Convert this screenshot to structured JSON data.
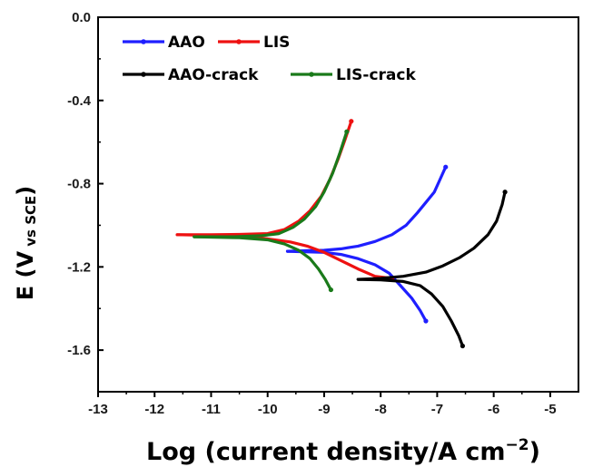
{
  "chart_data": {
    "type": "line",
    "title": "",
    "xlabel": "Log (current density/A cm",
    "xlabel_sup": "−2",
    "xlabel_close": ")",
    "ylabel_main": "E (V",
    "ylabel_sub": " vs SCE",
    "ylabel_close": ")",
    "xlim": [
      -13,
      -4.5
    ],
    "ylim": [
      -1.8,
      0.0
    ],
    "xticks": [
      -13,
      -12,
      -11,
      -10,
      -9,
      -8,
      -7,
      -6,
      -5
    ],
    "xtick_labels": [
      "-13",
      "-12",
      "-11",
      "-10",
      "-9",
      "-8",
      "-7",
      "-6",
      "-5"
    ],
    "yticks": [
      0.0,
      -0.4,
      -0.8,
      -1.2,
      -1.6
    ],
    "ytick_labels": [
      "0.0",
      "-0.4",
      "-0.8",
      "-1.2",
      "-1.6"
    ],
    "grid": false,
    "legend_position": "top-left",
    "series": [
      {
        "name": "AAO",
        "color": "#1f1fff",
        "points": [
          [
            -9.65,
            -1.125
          ],
          [
            -9.3,
            -1.122
          ],
          [
            -9.0,
            -1.12
          ],
          [
            -8.7,
            -1.113
          ],
          [
            -8.4,
            -1.1
          ],
          [
            -8.1,
            -1.078
          ],
          [
            -7.8,
            -1.045
          ],
          [
            -7.55,
            -1.0
          ],
          [
            -7.35,
            -0.94
          ],
          [
            -7.2,
            -0.89
          ],
          [
            -7.05,
            -0.84
          ],
          [
            -6.95,
            -0.78
          ],
          [
            -6.85,
            -0.72
          ]
        ]
      },
      {
        "name": "AAO",
        "color": "#1f1fff",
        "points": [
          [
            -9.65,
            -1.125
          ],
          [
            -9.0,
            -1.13
          ],
          [
            -8.7,
            -1.14
          ],
          [
            -8.4,
            -1.16
          ],
          [
            -8.1,
            -1.19
          ],
          [
            -7.85,
            -1.23
          ],
          [
            -7.65,
            -1.29
          ],
          [
            -7.45,
            -1.35
          ],
          [
            -7.3,
            -1.41
          ],
          [
            -7.2,
            -1.46
          ]
        ]
      },
      {
        "name": "LIS",
        "color": "#ee1111",
        "points": [
          [
            -11.6,
            -1.045
          ],
          [
            -11.0,
            -1.045
          ],
          [
            -10.5,
            -1.044
          ],
          [
            -10.0,
            -1.04
          ],
          [
            -9.7,
            -1.02
          ],
          [
            -9.45,
            -0.98
          ],
          [
            -9.25,
            -0.93
          ],
          [
            -9.05,
            -0.86
          ],
          [
            -8.9,
            -0.78
          ],
          [
            -8.75,
            -0.68
          ],
          [
            -8.62,
            -0.58
          ],
          [
            -8.52,
            -0.5
          ]
        ]
      },
      {
        "name": "LIS",
        "color": "#ee1111",
        "points": [
          [
            -11.6,
            -1.045
          ],
          [
            -10.5,
            -1.052
          ],
          [
            -10.0,
            -1.065
          ],
          [
            -9.6,
            -1.08
          ],
          [
            -9.3,
            -1.1
          ],
          [
            -9.0,
            -1.13
          ],
          [
            -8.7,
            -1.17
          ],
          [
            -8.4,
            -1.21
          ],
          [
            -8.1,
            -1.245
          ],
          [
            -7.8,
            -1.255
          ]
        ]
      },
      {
        "name": "AAO-crack",
        "color": "#000000",
        "points": [
          [
            -8.4,
            -1.26
          ],
          [
            -8.0,
            -1.255
          ],
          [
            -7.6,
            -1.245
          ],
          [
            -7.2,
            -1.225
          ],
          [
            -6.9,
            -1.195
          ],
          [
            -6.6,
            -1.155
          ],
          [
            -6.35,
            -1.11
          ],
          [
            -6.1,
            -1.045
          ],
          [
            -5.95,
            -0.98
          ],
          [
            -5.85,
            -0.9
          ],
          [
            -5.8,
            -0.84
          ]
        ]
      },
      {
        "name": "AAO-crack",
        "color": "#000000",
        "points": [
          [
            -8.4,
            -1.26
          ],
          [
            -8.0,
            -1.262
          ],
          [
            -7.6,
            -1.27
          ],
          [
            -7.3,
            -1.29
          ],
          [
            -7.1,
            -1.33
          ],
          [
            -6.9,
            -1.39
          ],
          [
            -6.75,
            -1.46
          ],
          [
            -6.62,
            -1.53
          ],
          [
            -6.55,
            -1.58
          ]
        ]
      },
      {
        "name": "LIS-crack",
        "color": "#1a7a1a",
        "points": [
          [
            -11.3,
            -1.055
          ],
          [
            -10.6,
            -1.055
          ],
          [
            -10.1,
            -1.05
          ],
          [
            -9.8,
            -1.04
          ],
          [
            -9.55,
            -1.01
          ],
          [
            -9.35,
            -0.97
          ],
          [
            -9.15,
            -0.91
          ],
          [
            -9.0,
            -0.84
          ],
          [
            -8.85,
            -0.75
          ],
          [
            -8.72,
            -0.65
          ],
          [
            -8.6,
            -0.55
          ]
        ]
      },
      {
        "name": "LIS-crack",
        "color": "#1a7a1a",
        "points": [
          [
            -11.3,
            -1.055
          ],
          [
            -10.5,
            -1.06
          ],
          [
            -10.0,
            -1.07
          ],
          [
            -9.7,
            -1.09
          ],
          [
            -9.45,
            -1.12
          ],
          [
            -9.25,
            -1.16
          ],
          [
            -9.1,
            -1.21
          ],
          [
            -8.98,
            -1.26
          ],
          [
            -8.88,
            -1.31
          ]
        ]
      }
    ],
    "legend": [
      {
        "label": "AAO",
        "color": "#1f1fff"
      },
      {
        "label": "LIS",
        "color": "#ee1111"
      },
      {
        "label": "AAO-crack",
        "color": "#000000"
      },
      {
        "label": "LIS-crack",
        "color": "#1a7a1a"
      }
    ]
  }
}
